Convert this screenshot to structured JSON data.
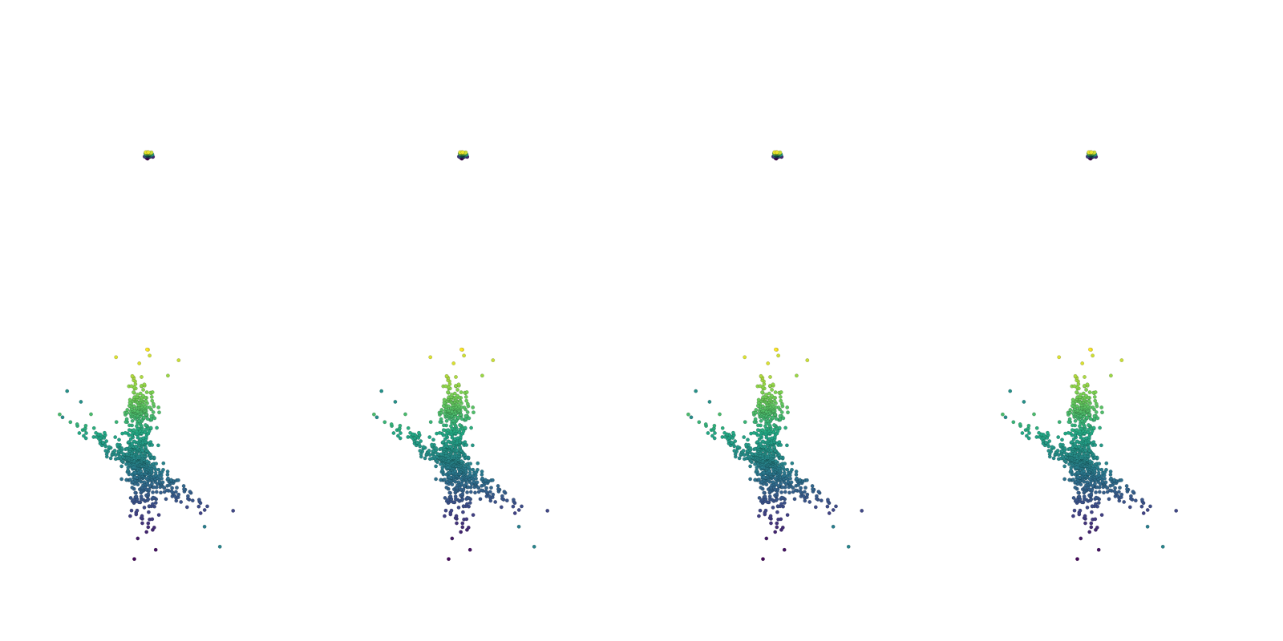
{
  "figure": {
    "rows": 2,
    "cols": 4,
    "background": "#ffffff",
    "colormap": "viridis",
    "colormap_stops": [
      "#440154",
      "#414487",
      "#2a788e",
      "#22a884",
      "#7ad151",
      "#fde725"
    ]
  },
  "chart_data": [
    {
      "type": "scatter",
      "title": "",
      "grid": false,
      "axes_visible": false,
      "panels": 4,
      "xlim": [
        -1,
        1
      ],
      "ylim": [
        -1.2,
        1
      ],
      "cluster": {
        "x": 0,
        "y": 0,
        "spread": 0.09,
        "points": 90
      }
    },
    {
      "type": "scatter",
      "title": "",
      "grid": false,
      "axes_visible": false,
      "panels": 4,
      "xlim": [
        -5,
        5.5
      ],
      "ylim": [
        -6.5,
        6.5
      ],
      "outliers": [
        {
          "x": -1.5,
          "y": 6.2,
          "value": 0.95
        },
        {
          "x": 0.7,
          "y": 6.3,
          "value": 0.93
        },
        {
          "x": 2.6,
          "y": 6.0,
          "value": 0.92
        },
        {
          "x": 1.9,
          "y": 5.0,
          "value": 0.85
        },
        {
          "x": -4.7,
          "y": 4.0,
          "value": 0.5
        },
        {
          "x": -5.0,
          "y": 2.3,
          "value": 0.48
        },
        {
          "x": -3.8,
          "y": 3.3,
          "value": 0.5
        },
        {
          "x": 5.3,
          "y": -6.1,
          "value": 0.45
        },
        {
          "x": 4.3,
          "y": -4.8,
          "value": 0.42
        },
        {
          "x": -0.3,
          "y": -6.9,
          "value": 0.02
        },
        {
          "x": 1.1,
          "y": -6.3,
          "value": 0.05
        }
      ]
    }
  ]
}
